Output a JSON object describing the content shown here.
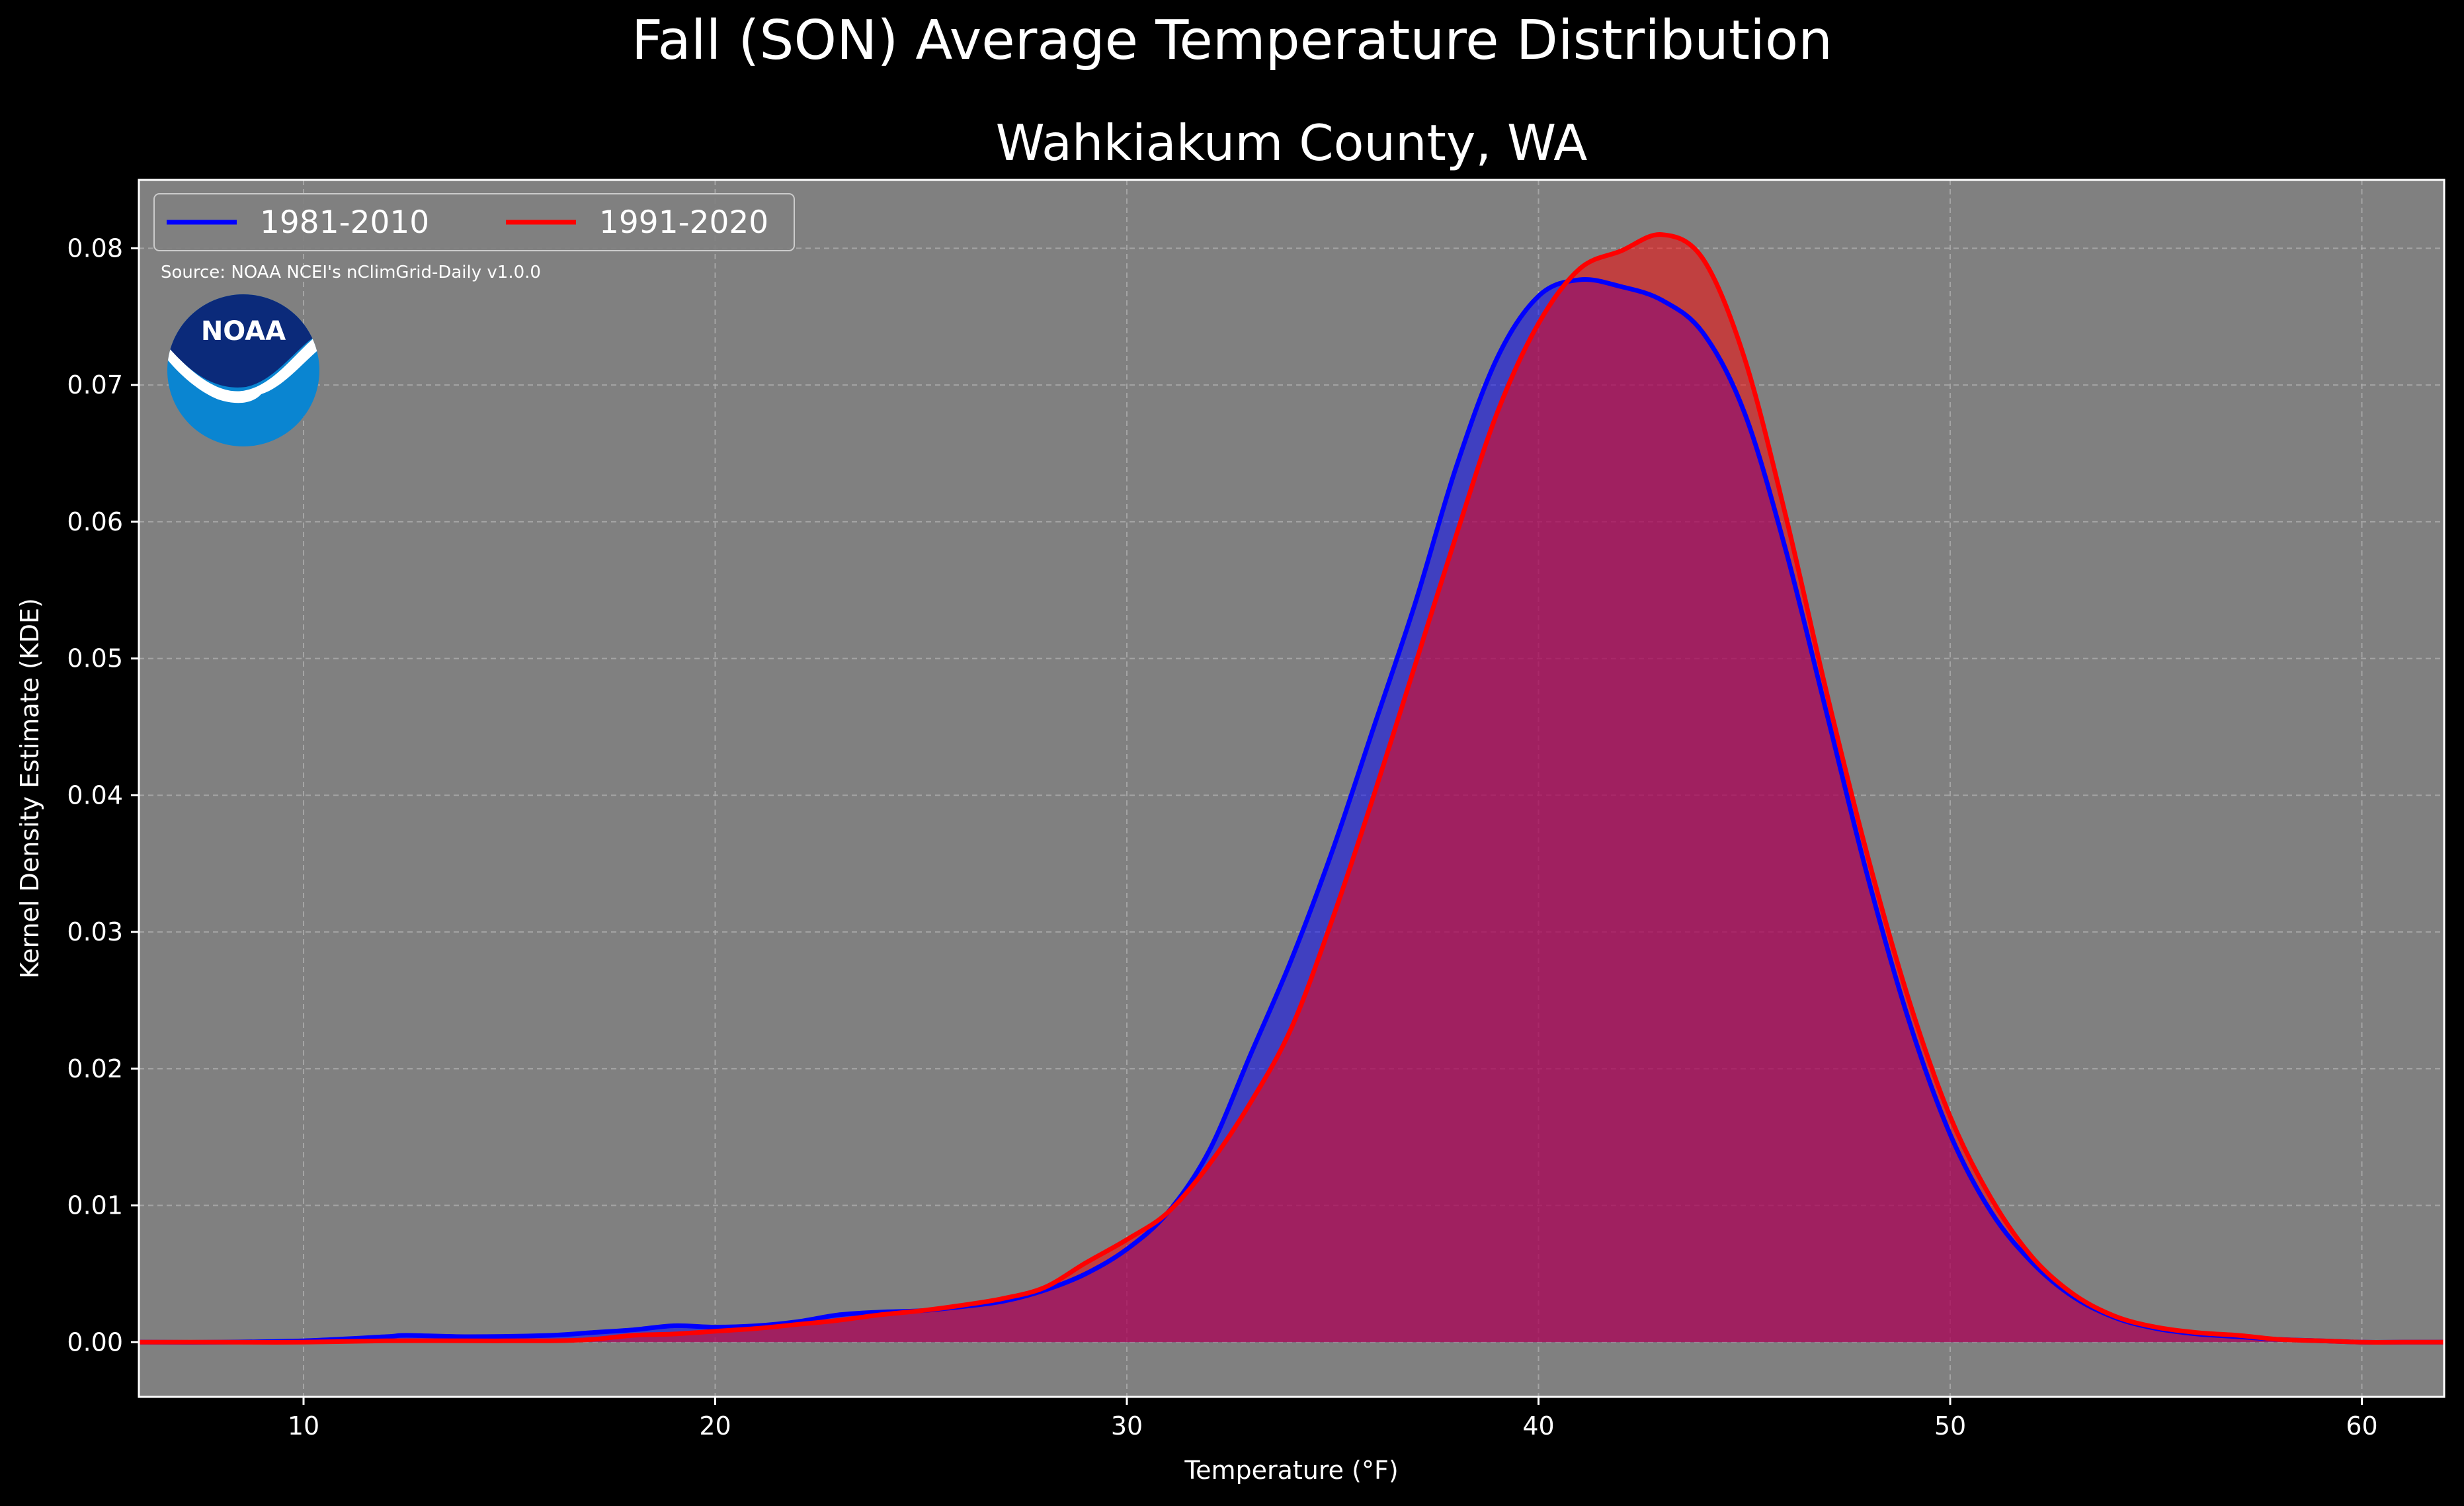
{
  "title": "Fall (SON) Average Temperature Distribution",
  "subtitle": "Wahkiakum County, WA",
  "source_note": "Source: NOAA NCEI's nClimGrid-Daily v1.0.0",
  "logo_text": "NOAA",
  "colors": {
    "background": "#000000",
    "plot_background": "#808080",
    "grid": "#b3b3b3",
    "series_1981_2010": "#0000ff",
    "series_1991_2020": "#ff0000"
  },
  "chart_data": {
    "type": "area",
    "title": "Wahkiakum County, WA",
    "xlabel": "Temperature (°F)",
    "ylabel": "Kernel Density Estimate (KDE)",
    "xlim": [
      6,
      62
    ],
    "ylim": [
      -0.004,
      0.085
    ],
    "xticks": [
      10,
      20,
      30,
      40,
      50,
      60
    ],
    "yticks": [
      0.0,
      0.01,
      0.02,
      0.03,
      0.04,
      0.05,
      0.06,
      0.07,
      0.08
    ],
    "grid": true,
    "legend_position": "top-left",
    "series": [
      {
        "name": "1981-2010",
        "color": "#0000ff",
        "x": [
          6,
          8,
          10,
          12,
          12.5,
          14,
          16,
          17,
          18,
          19,
          20,
          21,
          22,
          23,
          24,
          25,
          26,
          27,
          28,
          29,
          30,
          31,
          32,
          33,
          34,
          35,
          36,
          37,
          38,
          39,
          40,
          41,
          42,
          43,
          44,
          45,
          46,
          47,
          48,
          49,
          50,
          51,
          52,
          53,
          54,
          55,
          56,
          57,
          58,
          59,
          60,
          61,
          62
        ],
        "y": [
          0.0,
          0.0,
          0.0001,
          0.0004,
          0.0005,
          0.0004,
          0.0005,
          0.0007,
          0.0009,
          0.0012,
          0.0011,
          0.0012,
          0.0015,
          0.002,
          0.0022,
          0.0023,
          0.0026,
          0.003,
          0.0038,
          0.005,
          0.0068,
          0.0095,
          0.014,
          0.021,
          0.028,
          0.036,
          0.045,
          0.054,
          0.064,
          0.072,
          0.0765,
          0.0777,
          0.0772,
          0.0762,
          0.0738,
          0.068,
          0.058,
          0.046,
          0.034,
          0.0235,
          0.0152,
          0.0095,
          0.0058,
          0.0033,
          0.0018,
          0.001,
          0.0006,
          0.0004,
          0.0002,
          0.0001,
          0.0,
          0.0,
          0.0
        ]
      },
      {
        "name": "1991-2020",
        "color": "#ff0000",
        "x": [
          6,
          8,
          10,
          12,
          14,
          16,
          17,
          18,
          19,
          20,
          21,
          22,
          23,
          24,
          25,
          26,
          27,
          28,
          29,
          30,
          31,
          32,
          33,
          34,
          35,
          36,
          37,
          38,
          39,
          40,
          41,
          42,
          43,
          44,
          45,
          46,
          47,
          48,
          49,
          50,
          51,
          52,
          53,
          54,
          55,
          56,
          57,
          58,
          59,
          60,
          61,
          62
        ],
        "y": [
          0.0,
          0.0,
          0.0,
          0.0001,
          0.0001,
          0.0001,
          0.0002,
          0.0005,
          0.0006,
          0.0008,
          0.001,
          0.0013,
          0.0016,
          0.002,
          0.0023,
          0.0027,
          0.0032,
          0.004,
          0.0058,
          0.0075,
          0.0095,
          0.013,
          0.0175,
          0.023,
          0.031,
          0.04,
          0.0495,
          0.059,
          0.068,
          0.0745,
          0.0785,
          0.0798,
          0.081,
          0.0792,
          0.072,
          0.0605,
          0.0475,
          0.0355,
          0.025,
          0.0165,
          0.0105,
          0.0062,
          0.0035,
          0.0019,
          0.0011,
          0.0007,
          0.0005,
          0.0002,
          0.0001,
          0.0,
          0.0,
          0.0
        ]
      }
    ]
  }
}
